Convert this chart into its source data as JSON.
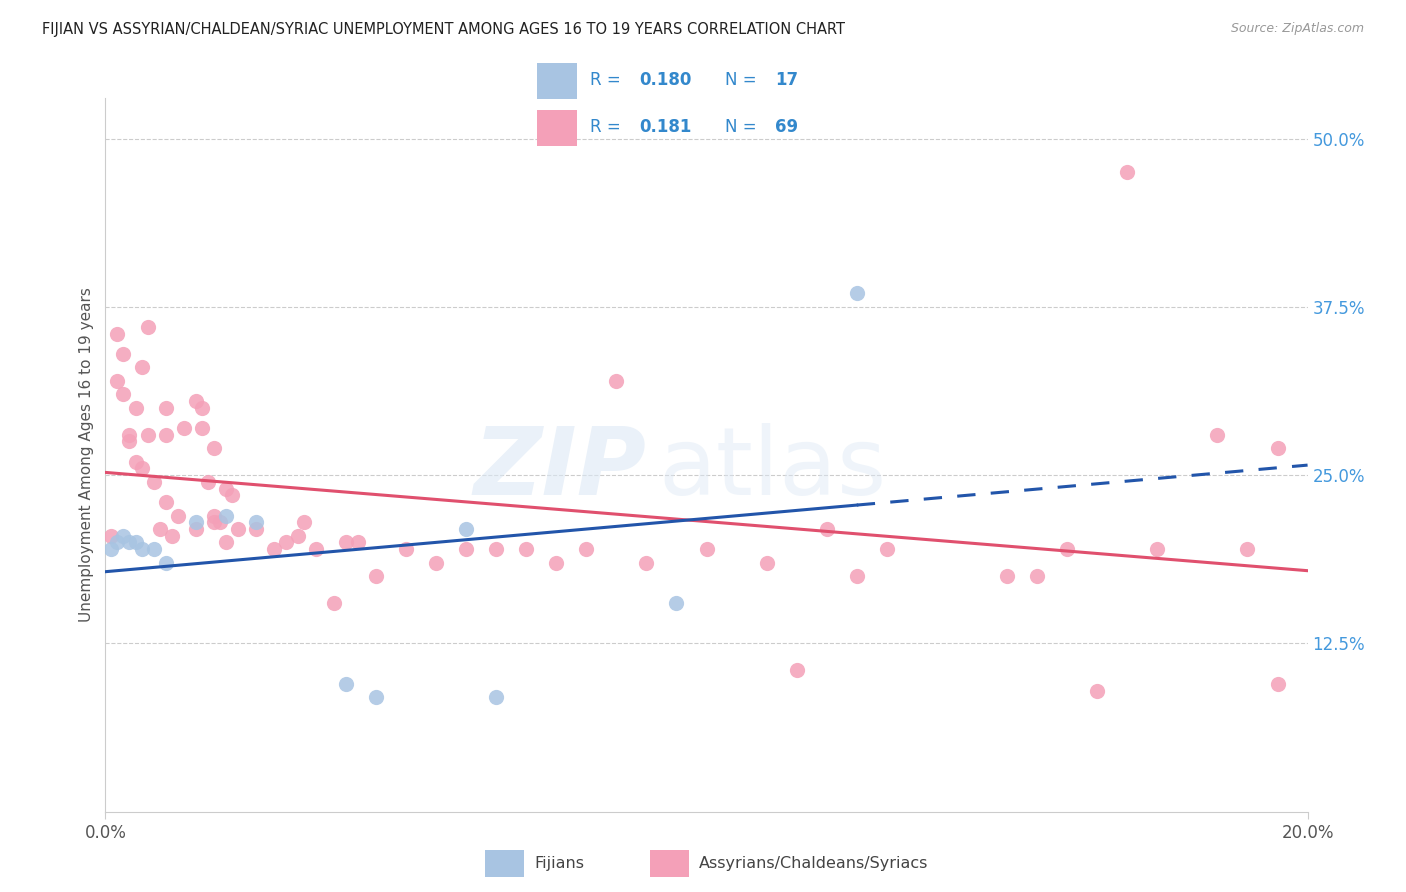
{
  "title": "FIJIAN VS ASSYRIAN/CHALDEAN/SYRIAC UNEMPLOYMENT AMONG AGES 16 TO 19 YEARS CORRELATION CHART",
  "source": "Source: ZipAtlas.com",
  "ylabel": "Unemployment Among Ages 16 to 19 years",
  "xlim": [
    0.0,
    0.2
  ],
  "ylim": [
    0.0,
    0.53
  ],
  "fijian_color": "#a8c4e2",
  "assyrian_color": "#f4a0b8",
  "fijian_line_color": "#2255aa",
  "assyrian_line_color": "#e0506e",
  "legend_text_color": "#3388cc",
  "grid_color": "#cccccc",
  "right_tick_color": "#4499dd",
  "bottom_tick_color": "#aaaaaa",
  "fijian_R": "0.180",
  "fijian_N": "17",
  "assyrian_R": "0.181",
  "assyrian_N": "69",
  "fijian_scatter_x": [
    0.001,
    0.002,
    0.003,
    0.004,
    0.005,
    0.006,
    0.008,
    0.01,
    0.015,
    0.02,
    0.025,
    0.04,
    0.045,
    0.06,
    0.065,
    0.095,
    0.125
  ],
  "fijian_scatter_y": [
    0.195,
    0.2,
    0.205,
    0.2,
    0.2,
    0.195,
    0.195,
    0.185,
    0.215,
    0.22,
    0.215,
    0.095,
    0.085,
    0.21,
    0.085,
    0.155,
    0.385
  ],
  "assyrian_scatter_x": [
    0.001,
    0.002,
    0.002,
    0.003,
    0.003,
    0.004,
    0.004,
    0.005,
    0.005,
    0.006,
    0.006,
    0.007,
    0.007,
    0.008,
    0.009,
    0.01,
    0.01,
    0.01,
    0.011,
    0.012,
    0.013,
    0.015,
    0.015,
    0.016,
    0.016,
    0.017,
    0.018,
    0.018,
    0.018,
    0.019,
    0.02,
    0.02,
    0.021,
    0.022,
    0.025,
    0.028,
    0.03,
    0.032,
    0.033,
    0.035,
    0.038,
    0.04,
    0.042,
    0.045,
    0.05,
    0.055,
    0.06,
    0.065,
    0.07,
    0.075,
    0.08,
    0.085,
    0.09,
    0.1,
    0.11,
    0.115,
    0.12,
    0.125,
    0.13,
    0.15,
    0.155,
    0.16,
    0.165,
    0.17,
    0.175,
    0.185,
    0.19,
    0.195,
    0.195
  ],
  "assyrian_scatter_y": [
    0.205,
    0.355,
    0.32,
    0.31,
    0.34,
    0.275,
    0.28,
    0.3,
    0.26,
    0.255,
    0.33,
    0.28,
    0.36,
    0.245,
    0.21,
    0.23,
    0.28,
    0.3,
    0.205,
    0.22,
    0.285,
    0.21,
    0.305,
    0.3,
    0.285,
    0.245,
    0.215,
    0.22,
    0.27,
    0.215,
    0.24,
    0.2,
    0.235,
    0.21,
    0.21,
    0.195,
    0.2,
    0.205,
    0.215,
    0.195,
    0.155,
    0.2,
    0.2,
    0.175,
    0.195,
    0.185,
    0.195,
    0.195,
    0.195,
    0.185,
    0.195,
    0.32,
    0.185,
    0.195,
    0.185,
    0.105,
    0.21,
    0.175,
    0.195,
    0.175,
    0.175,
    0.195,
    0.09,
    0.475,
    0.195,
    0.28,
    0.195,
    0.095,
    0.27
  ],
  "ytick_positions": [
    0.125,
    0.25,
    0.375,
    0.5
  ],
  "ytick_labels": [
    "12.5%",
    "25.0%",
    "37.5%",
    "50.0%"
  ],
  "xtick_positions": [
    0.0,
    0.2
  ],
  "xtick_labels": [
    "0.0%",
    "20.0%"
  ]
}
